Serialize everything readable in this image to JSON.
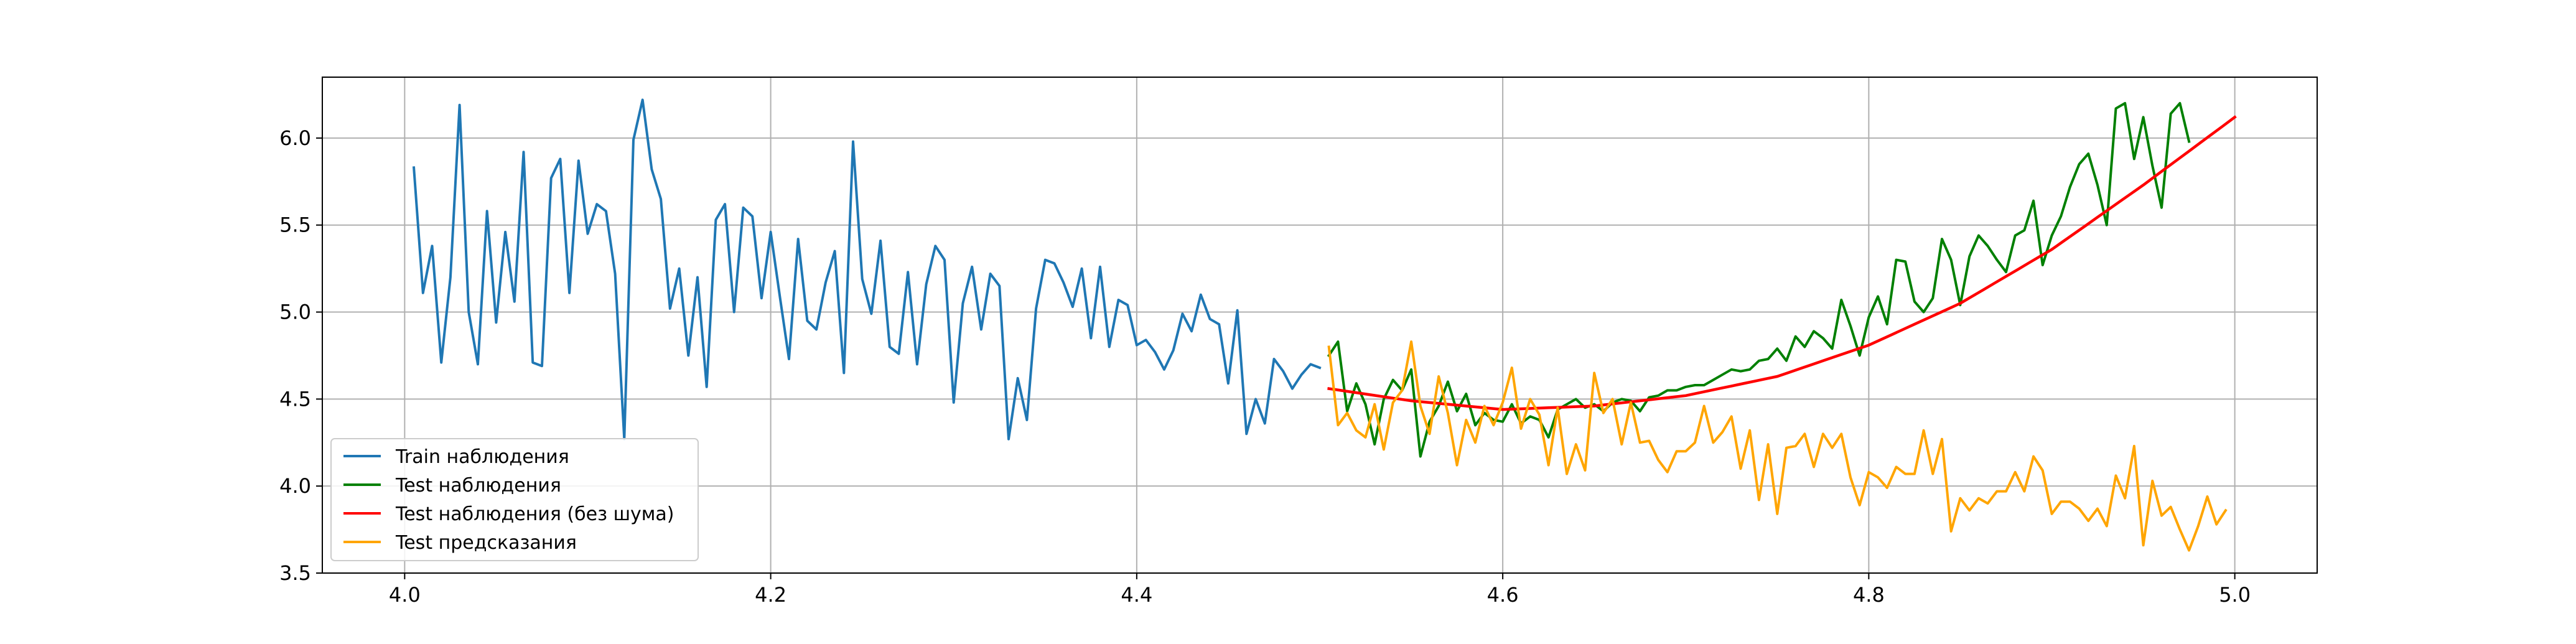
{
  "chart_data": {
    "type": "line",
    "title": "",
    "xlabel": "",
    "ylabel": "",
    "xlim": [
      3.955,
      5.045
    ],
    "ylim": [
      3.5,
      6.35
    ],
    "x_ticks": [
      4.0,
      4.2,
      4.4,
      4.6,
      4.8,
      5.0
    ],
    "x_tick_labels": [
      "4.0",
      "4.2",
      "4.4",
      "4.6",
      "4.8",
      "5.0"
    ],
    "y_ticks": [
      3.5,
      4.0,
      4.5,
      5.0,
      5.5,
      6.0
    ],
    "y_tick_labels": [
      "3.5",
      "4.0",
      "4.5",
      "5.0",
      "5.5",
      "6.0"
    ],
    "grid": true,
    "legend_position": "lower-left",
    "series": [
      {
        "name": "Train наблюдения",
        "color": "#1f77b4",
        "x_start": 4.005,
        "x_step": 0.005,
        "values": [
          5.83,
          5.11,
          5.38,
          4.71,
          5.2,
          6.19,
          5.0,
          4.7,
          5.58,
          4.94,
          5.46,
          5.06,
          5.92,
          4.71,
          4.69,
          5.77,
          5.88,
          5.11,
          5.87,
          5.45,
          5.62,
          5.58,
          5.22,
          4.27,
          5.99,
          6.22,
          5.82,
          5.65,
          5.02,
          5.25,
          4.75,
          5.2,
          4.57,
          5.53,
          5.62,
          5.0,
          5.6,
          5.55,
          5.08,
          5.46,
          5.09,
          4.73,
          5.42,
          4.95,
          4.9,
          5.17,
          5.35,
          4.65,
          5.98,
          5.19,
          4.99,
          5.41,
          4.8,
          4.76,
          5.23,
          4.7,
          5.16,
          5.38,
          5.3,
          4.48,
          5.05,
          5.26,
          4.9,
          5.22,
          5.15,
          4.27,
          4.62,
          4.38,
          5.02,
          5.3,
          5.28,
          5.17,
          5.03,
          5.25,
          4.85,
          5.26,
          4.8,
          5.07,
          5.04,
          4.81,
          4.84,
          4.77,
          4.67,
          4.78,
          4.99,
          4.89,
          5.1,
          4.96,
          4.93,
          4.59,
          5.01,
          4.3,
          4.5,
          4.36,
          4.73,
          4.66,
          4.56,
          4.64,
          4.7,
          4.68
        ]
      },
      {
        "name": "Test наблюдения",
        "color": "#008000",
        "x_start": 4.505,
        "x_step": 0.005,
        "values": [
          4.75,
          4.83,
          4.43,
          4.59,
          4.47,
          4.24,
          4.5,
          4.61,
          4.55,
          4.67,
          4.17,
          4.37,
          4.46,
          4.6,
          4.43,
          4.53,
          4.35,
          4.42,
          4.38,
          4.37,
          4.47,
          4.36,
          4.4,
          4.38,
          4.28,
          4.44,
          4.47,
          4.5,
          4.45,
          4.47,
          4.43,
          4.48,
          4.5,
          4.49,
          4.43,
          4.51,
          4.52,
          4.55,
          4.55,
          4.57,
          4.58,
          4.58,
          4.61,
          4.64,
          4.67,
          4.66,
          4.67,
          4.72,
          4.73,
          4.79,
          4.72,
          4.86,
          4.8,
          4.89,
          4.85,
          4.79,
          5.07,
          4.92,
          4.75,
          4.97,
          5.09,
          4.93,
          5.3,
          5.29,
          5.06,
          5.0,
          5.08,
          5.42,
          5.3,
          5.04,
          5.32,
          5.44,
          5.38,
          5.3,
          5.23,
          5.44,
          5.47,
          5.64,
          5.27,
          5.44,
          5.55,
          5.72,
          5.85,
          5.91,
          5.73,
          5.5,
          6.17,
          6.2,
          5.88,
          6.12,
          5.84,
          5.6,
          6.14,
          6.2,
          5.98
        ]
      },
      {
        "name": "Test наблюдения (без шума)",
        "color": "#ff0000",
        "x": [
          4.505,
          4.55,
          4.6,
          4.65,
          4.7,
          4.75,
          4.8,
          4.85,
          4.9,
          4.95,
          5.0
        ],
        "values": [
          4.56,
          4.49,
          4.44,
          4.46,
          4.52,
          4.63,
          4.81,
          5.05,
          5.36,
          5.73,
          6.12
        ]
      },
      {
        "name": "Test предсказания",
        "color": "#ffa500",
        "x_start": 4.505,
        "x_step": 0.005,
        "values": [
          4.8,
          4.35,
          4.42,
          4.32,
          4.28,
          4.47,
          4.21,
          4.48,
          4.55,
          4.83,
          4.46,
          4.3,
          4.63,
          4.42,
          4.12,
          4.38,
          4.25,
          4.46,
          4.35,
          4.48,
          4.68,
          4.33,
          4.5,
          4.41,
          4.12,
          4.45,
          4.07,
          4.24,
          4.09,
          4.65,
          4.42,
          4.5,
          4.24,
          4.48,
          4.25,
          4.26,
          4.15,
          4.08,
          4.2,
          4.2,
          4.25,
          4.46,
          4.25,
          4.31,
          4.4,
          4.1,
          4.32,
          3.92,
          4.24,
          3.84,
          4.22,
          4.23,
          4.3,
          4.11,
          4.3,
          4.22,
          4.3,
          4.05,
          3.89,
          4.08,
          4.05,
          3.99,
          4.11,
          4.07,
          4.07,
          4.32,
          4.07,
          4.27,
          3.74,
          3.93,
          3.86,
          3.93,
          3.9,
          3.97,
          3.97,
          4.08,
          3.97,
          4.17,
          4.09,
          3.84,
          3.91,
          3.91,
          3.87,
          3.8,
          3.87,
          3.77,
          4.06,
          3.93,
          4.23,
          3.66,
          4.03,
          3.83,
          3.88,
          3.75,
          3.63,
          3.77,
          3.94,
          3.78,
          3.86
        ]
      }
    ]
  }
}
